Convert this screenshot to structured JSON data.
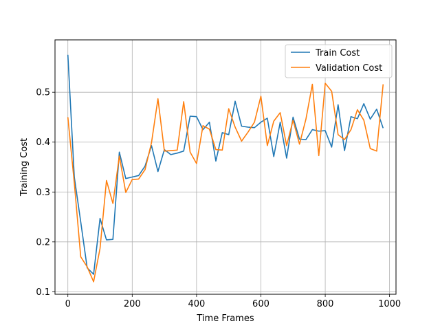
{
  "chart_data": {
    "type": "line",
    "title": "",
    "xlabel": "Time Frames",
    "ylabel": "Training Cost",
    "xlim": [
      -40,
      1020
    ],
    "ylim": [
      0.095,
      0.605
    ],
    "xticks": [
      0,
      200,
      400,
      600,
      800,
      1000
    ],
    "yticks": [
      0.1,
      0.2,
      0.3,
      0.4,
      0.5
    ],
    "grid": true,
    "legend_position": "top-right",
    "x": [
      0,
      20,
      40,
      60,
      80,
      100,
      120,
      140,
      160,
      180,
      200,
      220,
      240,
      260,
      280,
      300,
      320,
      340,
      360,
      380,
      400,
      420,
      440,
      460,
      480,
      500,
      520,
      540,
      560,
      580,
      600,
      620,
      640,
      660,
      680,
      700,
      720,
      740,
      760,
      780,
      800,
      820,
      840,
      860,
      880,
      900,
      920,
      940,
      960,
      980
    ],
    "series": [
      {
        "name": "Train Cost",
        "color": "#1f77b4",
        "values": [
          0.575,
          0.33,
          0.24,
          0.148,
          0.135,
          0.247,
          0.204,
          0.205,
          0.38,
          0.327,
          0.33,
          0.333,
          0.352,
          0.393,
          0.341,
          0.385,
          0.375,
          0.378,
          0.382,
          0.452,
          0.451,
          0.425,
          0.44,
          0.362,
          0.419,
          0.415,
          0.482,
          0.432,
          0.43,
          0.429,
          0.44,
          0.448,
          0.371,
          0.44,
          0.368,
          0.45,
          0.406,
          0.405,
          0.425,
          0.422,
          0.423,
          0.39,
          0.475,
          0.383,
          0.451,
          0.447,
          0.477,
          0.446,
          0.466,
          0.428
        ]
      },
      {
        "name": "Validation Cost",
        "color": "#ff7f0e",
        "values": [
          0.45,
          0.318,
          0.17,
          0.15,
          0.12,
          0.187,
          0.323,
          0.277,
          0.372,
          0.299,
          0.325,
          0.326,
          0.345,
          0.399,
          0.487,
          0.382,
          0.383,
          0.384,
          0.481,
          0.38,
          0.357,
          0.433,
          0.426,
          0.385,
          0.384,
          0.467,
          0.43,
          0.402,
          0.42,
          0.44,
          0.492,
          0.393,
          0.442,
          0.459,
          0.393,
          0.444,
          0.396,
          0.446,
          0.516,
          0.373,
          0.518,
          0.502,
          0.415,
          0.405,
          0.425,
          0.465,
          0.444,
          0.387,
          0.382,
          0.516
        ]
      }
    ]
  }
}
